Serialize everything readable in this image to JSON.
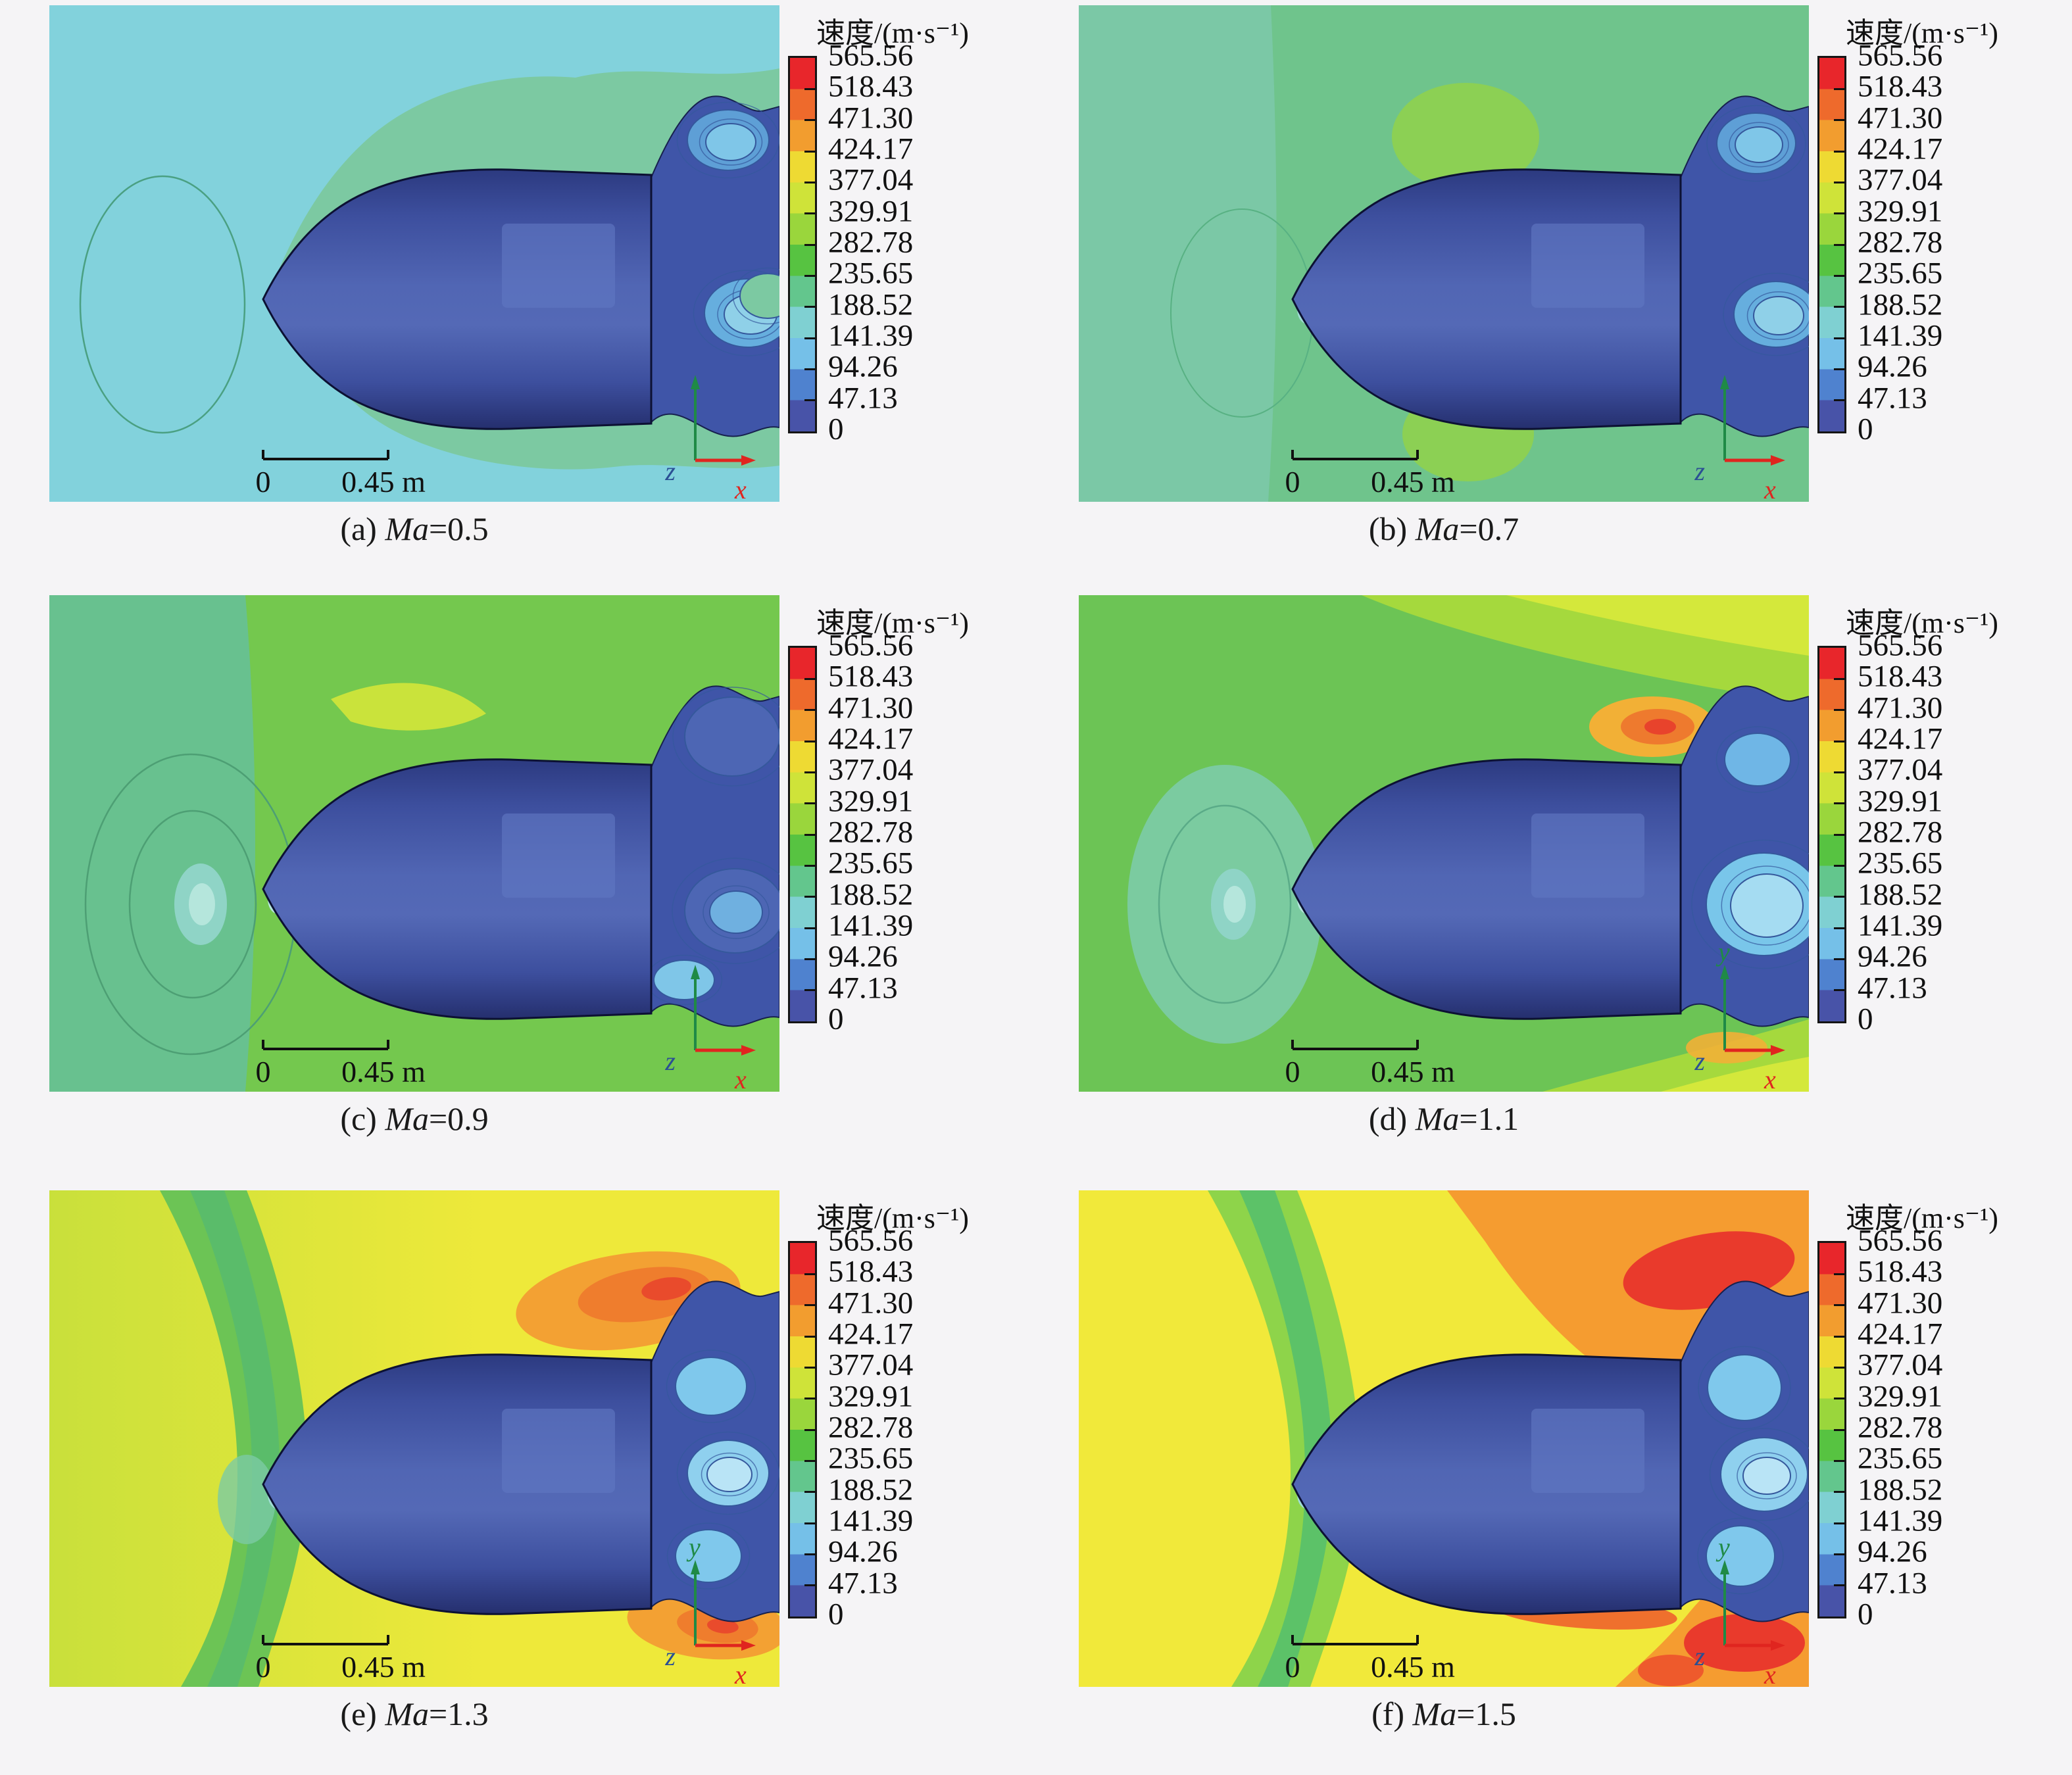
{
  "page": {
    "background": "#f5f4f6"
  },
  "legend": {
    "title": "速度/(m·s⁻¹)",
    "values": [
      "565.56",
      "518.43",
      "471.30",
      "424.17",
      "377.04",
      "329.91",
      "282.78",
      "235.65",
      "188.52",
      "141.39",
      "94.26",
      "47.13",
      "0"
    ],
    "colorbar_top_to_bottom": [
      "#e8262b",
      "#ee6a2c",
      "#f29d2f",
      "#eeda33",
      "#cfe339",
      "#9ad63c",
      "#57c341",
      "#63c68d",
      "#7fd0d2",
      "#75c0e8",
      "#4f82cf",
      "#4853a8"
    ]
  },
  "scalebar": {
    "left_label": "0",
    "right_label": "0.45 m"
  },
  "axes": {
    "x_label": "x",
    "y_label": "y",
    "z_label": "z",
    "x_color": "#e0251f",
    "y_color": "#1f8a46",
    "z_color": "#2a4f94"
  },
  "panels": [
    {
      "id": "a",
      "caption_index": "(a)",
      "caption_ma": "Ma",
      "caption_value": "=0.5",
      "show_y_label": false,
      "colors": {
        "freestream": "#82d2dc",
        "halo": "#7cc9a2",
        "ring": "#4aa082",
        "wake": "#3f55a8",
        "wake_edge": "#17214e",
        "body": "#4f63b2",
        "body_edge": "#0c1133"
      }
    },
    {
      "id": "b",
      "caption_index": "(b)",
      "caption_ma": "Ma",
      "caption_value": "=0.7",
      "show_y_label": false,
      "colors": {
        "freestream": "#6fc48c",
        "halo": "#7bc8a6",
        "accent": "#8fd24e",
        "ring": "#58b183",
        "stagnation_core": "#9fdcd4",
        "wake": "#3f55a8",
        "wake_edge": "#17214e",
        "body": "#4f63b2",
        "body_edge": "#0c1133"
      }
    },
    {
      "id": "c",
      "caption_index": "(c)",
      "caption_ma": "Ma",
      "caption_value": "=0.9",
      "show_y_label": false,
      "colors": {
        "freestream": "#68c18f",
        "halo": "#74c84e",
        "accent": "#cfe53a",
        "ring": "#4d9f74",
        "stagnation": "#8fd4c6",
        "stagnation_core": "#b5e6dc",
        "wake": "#3f55a8",
        "wake_edge": "#17214e",
        "body": "#4f63b2",
        "body_edge": "#0c1133"
      }
    },
    {
      "id": "d",
      "caption_index": "(d)",
      "caption_ma": "Ma",
      "caption_value": "=1.1",
      "show_y_label": true,
      "colors": {
        "freestream": "#6cc455",
        "halo": "#7ccba4",
        "accent": "#a9da3c",
        "accent2": "#d6e93b",
        "ring": "#5aab88",
        "stagnation": "#8fd4c6",
        "stagnation_core": "#b5e6dc",
        "hot1": "#f2b036",
        "hot2": "#ee7a2e",
        "hot3": "#e8432c",
        "wake": "#3f55a8",
        "wake_edge": "#17214e",
        "body": "#4f63b2",
        "body_edge": "#0c1133"
      }
    },
    {
      "id": "e",
      "caption_index": "(e)",
      "caption_ma": "Ma",
      "caption_value": "=1.3",
      "show_y_label": true,
      "colors": {
        "freestream": "#c9e03b",
        "freestream2": "#eee93a",
        "halo": "#6cc455",
        "accent": "#57bb6e",
        "stagnation": "#7ccba4",
        "stagnation_core": "#9fdcd4",
        "hot1": "#f3a133",
        "hot2": "#ef7d2d",
        "hot3": "#e94b2c",
        "wake": "#3f55a8",
        "wake_edge": "#17214e",
        "body": "#4f63b2",
        "body_edge": "#0c1133"
      }
    },
    {
      "id": "f",
      "caption_index": "(f)",
      "caption_ma": "Ma",
      "caption_value": "=1.5",
      "show_y_label": true,
      "colors": {
        "freestream": "#f1e93a",
        "halo": "#8ed44a",
        "accent": "#57c06c",
        "stagnation_core": "#9fdcd4",
        "hot1": "#f59c30",
        "hot2": "#ee5a2c",
        "hot3": "#e93a2c",
        "wake": "#3f55a8",
        "wake_edge": "#17214e",
        "body": "#4f63b2",
        "body_edge": "#0c1133"
      }
    }
  ],
  "chart_data": {
    "type": "heatmap",
    "subtype": "CFD velocity contour slices around a projectile",
    "variable": "速度 (velocity)",
    "units": "m·s⁻¹",
    "colorbar_levels": [
      565.56,
      518.43,
      471.3,
      424.17,
      377.04,
      329.91,
      282.78,
      235.65,
      188.52,
      141.39,
      94.26,
      47.13,
      0
    ],
    "colorbar_range": [
      0,
      565.56
    ],
    "colorbar_colors_top_to_bottom": [
      "#e8262b",
      "#ee6a2c",
      "#f29d2f",
      "#eeda33",
      "#cfe339",
      "#9ad63c",
      "#57c341",
      "#63c68d",
      "#7fd0d2",
      "#75c0e8",
      "#4f82cf",
      "#4853a8"
    ],
    "scale_bar": {
      "labels": [
        "0",
        "0.45 m"
      ],
      "length_m": 0.45
    },
    "coordinate_axes": [
      "y",
      "z",
      "x"
    ],
    "panels": [
      {
        "index": "(a)",
        "mach": 0.5
      },
      {
        "index": "(b)",
        "mach": 0.7
      },
      {
        "index": "(c)",
        "mach": 0.9
      },
      {
        "index": "(d)",
        "mach": 1.1
      },
      {
        "index": "(e)",
        "mach": 1.3
      },
      {
        "index": "(f)",
        "mach": 1.5
      }
    ],
    "qualitative_reading": "Velocity field around a blunt-nosed projectile at six Mach numbers; freestream contour color rises from cyan/teal (~141-188 m/s) at Ma=0.5 through green (~235-282 m/s) near Ma=0.9-1.1 to yellow (~424 m/s) at Ma=1.5; the base wake stays low velocity (0-94 m/s, blue); at Ma>=1.1 a detached bow-shock band forms ahead of the nose and orange/red high-velocity lobes (~470-565 m/s) appear over the shoulder and behind the base."
  }
}
